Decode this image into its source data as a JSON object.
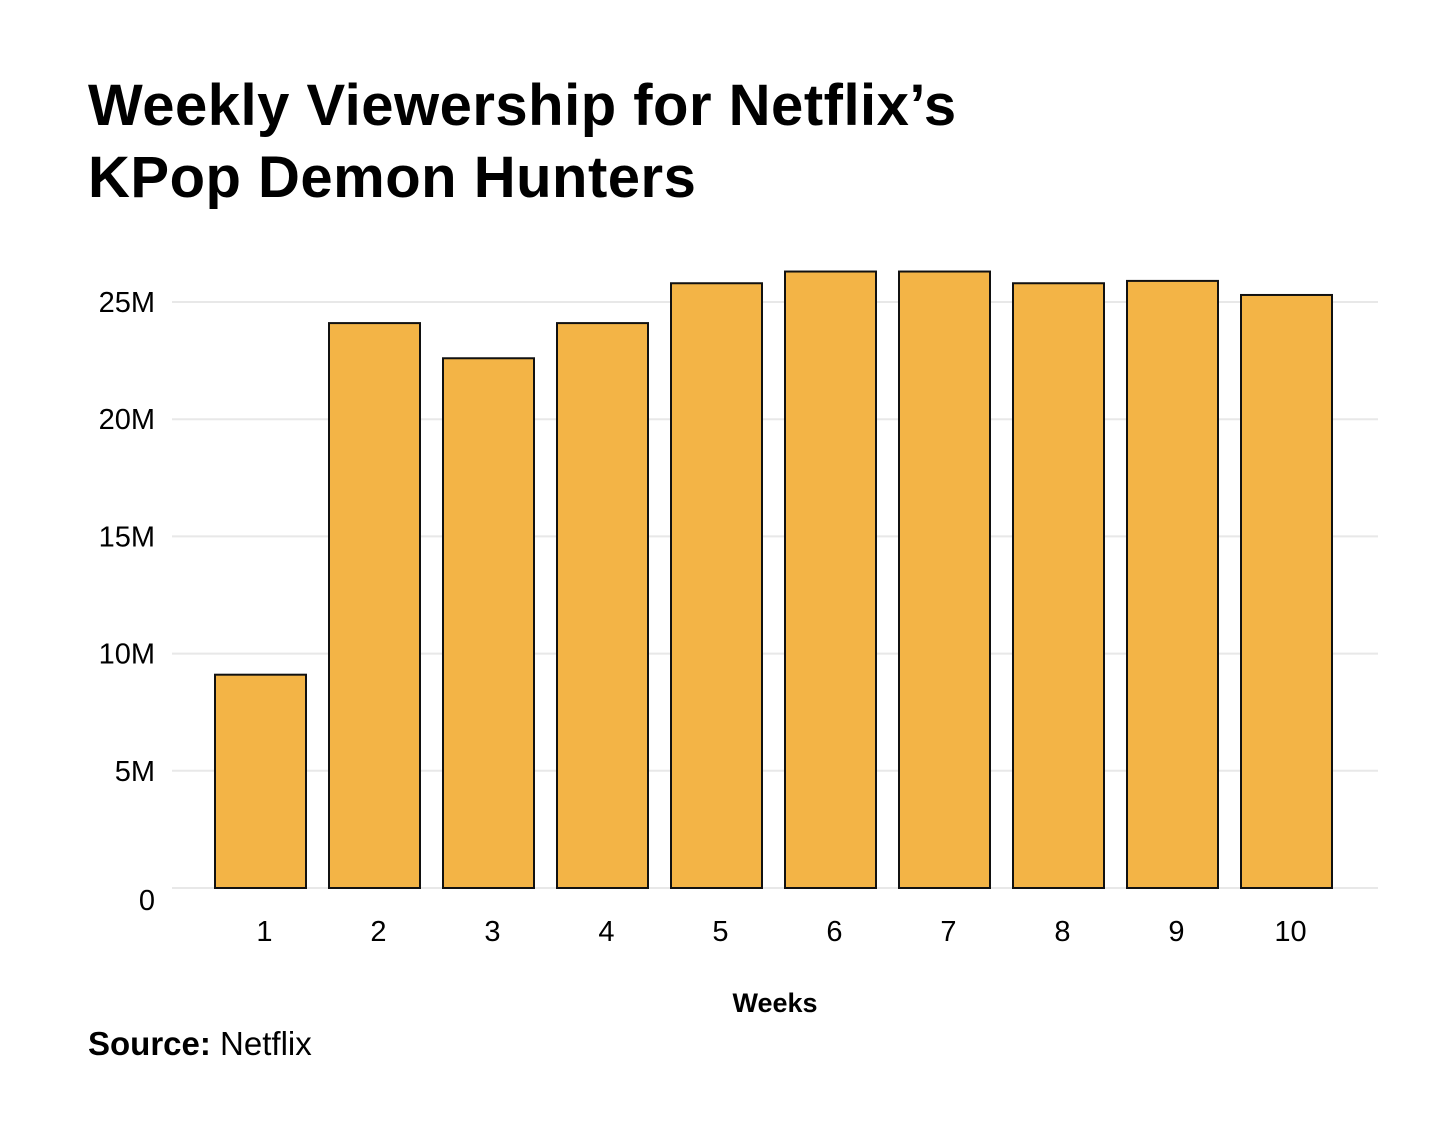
{
  "title_lines": [
    "Weekly Viewership for Netflix’s",
    "KPop Demon Hunters"
  ],
  "source": {
    "label": "Source:",
    "value": "Netflix"
  },
  "colors": {
    "bar_fill": "#F3B446",
    "bar_stroke": "#111111",
    "grid": "#E8E8E8"
  },
  "chart_data": {
    "type": "bar",
    "title": "Weekly Viewership for Netflix’s KPop Demon Hunters",
    "xlabel": "Weeks",
    "ylabel": "",
    "categories": [
      "1",
      "2",
      "3",
      "4",
      "5",
      "6",
      "7",
      "8",
      "9",
      "10"
    ],
    "values": [
      9.1,
      24.1,
      22.6,
      24.1,
      25.8,
      26.3,
      26.3,
      25.8,
      25.9,
      25.3
    ],
    "value_unit": "M",
    "ylim": [
      0,
      27
    ],
    "yticks": [
      0,
      5,
      10,
      15,
      20,
      25
    ],
    "ytick_labels": [
      "0",
      "5M",
      "10M",
      "15M",
      "20M",
      "25M"
    ],
    "grid": true,
    "legend": "none"
  }
}
